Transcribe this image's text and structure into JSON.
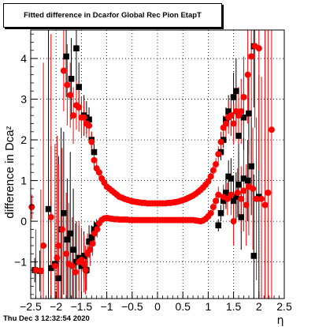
{
  "title": "Fitted difference in Dca",
  "title_subscript": "z",
  "title_suffix": " for Global Rec Pion EtapT",
  "footer_timestamp": "Thu Dec  3 12:32:54 2020",
  "chart_data": {
    "type": "scatter",
    "xlabel": "η",
    "ylabel": "difference in Dca",
    "ylabel_subscript": "z",
    "xlim": [
      -2.5,
      2.5
    ],
    "ylim": [
      -1.9,
      4.7
    ],
    "x_ticks": [
      "−2.5",
      "−2",
      "−1.5",
      "−1",
      "−0.5",
      "0",
      "0.5",
      "1",
      "1.5",
      "2",
      "2.5"
    ],
    "y_ticks": [
      "−1",
      "0",
      "1",
      "2",
      "3",
      "4"
    ],
    "grid": true,
    "colors": {
      "series_square": "#000000",
      "series_circle": "#ff0000",
      "series_circle_upper": "#ff0000",
      "error_bar_black": "#000000",
      "error_bar_red": "#ff0000"
    },
    "series": [
      {
        "marker": "square",
        "color": "#000000",
        "points": [
          [
            -2.42,
            -1.2,
            0.3
          ],
          [
            -2.32,
            -1.22,
            0.5
          ],
          [
            -2.15,
            0.3,
            4.5
          ],
          [
            -2.1,
            -1.15,
            3.0
          ],
          [
            -2.02,
            -1.05,
            1.0
          ],
          [
            -1.95,
            -1.4,
            3.0
          ],
          [
            -1.9,
            -0.2,
            2.5
          ],
          [
            -1.85,
            0.2,
            2.0
          ],
          [
            -1.78,
            -0.45,
            1.5
          ],
          [
            -1.72,
            -0.3,
            2.0
          ],
          [
            -1.66,
            -0.7,
            1.5
          ],
          [
            -1.6,
            -1.0,
            1.0
          ],
          [
            -1.55,
            -0.9,
            0.8
          ],
          [
            -1.5,
            -1.1,
            0.9
          ],
          [
            -1.45,
            -0.85,
            0.6
          ],
          [
            -1.4,
            -1.2,
            0.5
          ],
          [
            -1.35,
            -0.5,
            0.4
          ],
          [
            -1.3,
            -0.4,
            0.3
          ],
          [
            -1.25,
            -0.2,
            0.2
          ],
          [
            -1.2,
            -0.1,
            0.15
          ],
          [
            -1.8,
            4.05,
            1.0
          ],
          [
            -1.7,
            3.5,
            1.0
          ],
          [
            -1.6,
            4.25,
            0.8
          ],
          [
            -1.55,
            3.3,
            0.6
          ],
          [
            -1.45,
            2.6,
            0.5
          ],
          [
            -1.4,
            2.55,
            0.4
          ],
          [
            -1.35,
            2.5,
            0.3
          ],
          [
            -1.3,
            2.0,
            0.2
          ],
          [
            -1.25,
            1.7,
            0.2
          ],
          [
            1.25,
            1.7,
            0.2
          ],
          [
            1.3,
            2.0,
            0.2
          ],
          [
            1.35,
            2.5,
            0.3
          ],
          [
            1.4,
            2.7,
            0.4
          ],
          [
            1.45,
            2.6,
            0.5
          ],
          [
            1.5,
            3.05,
            0.6
          ],
          [
            1.55,
            3.2,
            0.8
          ],
          [
            1.6,
            2.1,
            0.8
          ],
          [
            1.7,
            2.55,
            1.0
          ],
          [
            1.8,
            2.65,
            1.0
          ],
          [
            1.9,
            4.3,
            1.5
          ],
          [
            1.2,
            -0.1,
            0.15
          ],
          [
            1.25,
            0.2,
            0.2
          ],
          [
            1.3,
            0.5,
            0.3
          ],
          [
            1.35,
            0.7,
            0.4
          ],
          [
            1.4,
            1.1,
            0.4
          ],
          [
            1.45,
            1.05,
            0.5
          ],
          [
            1.5,
            0.5,
            0.6
          ],
          [
            1.55,
            0.6,
            0.6
          ],
          [
            1.6,
            0.9,
            0.8
          ],
          [
            1.65,
            0.1,
            0.8
          ],
          [
            1.7,
            1.05,
            1.0
          ],
          [
            1.78,
            1.0,
            1.0
          ],
          [
            1.85,
            1.35,
            1.2
          ],
          [
            1.9,
            -0.85,
            2.0
          ],
          [
            2.0,
            0.6,
            3.0
          ]
        ]
      },
      {
        "marker": "circle",
        "color": "#ff0000",
        "points": [
          [
            -2.48,
            0.35,
            0.3
          ],
          [
            -2.4,
            -1.2,
            1.0
          ],
          [
            -2.3,
            -1.22,
            2.0
          ],
          [
            -2.25,
            -0.6,
            4.5
          ],
          [
            -2.1,
            0.1,
            4.5
          ],
          [
            -2.02,
            -1.1,
            3.0
          ],
          [
            -1.98,
            -0.9,
            3.0
          ],
          [
            -1.95,
            -0.6,
            2.0
          ],
          [
            -1.88,
            -0.2,
            2.0
          ],
          [
            -1.8,
            -0.8,
            1.5
          ],
          [
            -1.75,
            -1.05,
            1.5
          ],
          [
            -1.68,
            -1.1,
            1.2
          ],
          [
            -1.62,
            -1.25,
            1.2
          ],
          [
            -1.55,
            -1.0,
            1.0
          ],
          [
            -1.5,
            -0.95,
            0.8
          ],
          [
            -1.45,
            -1.05,
            0.7
          ],
          [
            -1.42,
            -1.2,
            0.6
          ],
          [
            -1.38,
            -0.8,
            0.5
          ],
          [
            -1.33,
            -0.7,
            0.4
          ],
          [
            -1.28,
            -0.55,
            0.3
          ],
          [
            -1.24,
            -0.3,
            0.25
          ],
          [
            -1.19,
            -0.2,
            0.2
          ],
          [
            -1.15,
            -0.05,
            0.1
          ],
          [
            -1.1,
            0.03,
            0.08
          ],
          [
            -1.05,
            0.07,
            0.06
          ],
          [
            -1.0,
            0.08,
            0.05
          ],
          [
            -0.95,
            0.07,
            0.05
          ],
          [
            -0.9,
            0.06,
            0.05
          ],
          [
            -0.85,
            0.05,
            0.05
          ],
          [
            -0.8,
            0.05,
            0.05
          ],
          [
            -0.75,
            0.04,
            0.05
          ],
          [
            -0.7,
            0.04,
            0.05
          ],
          [
            -0.65,
            0.04,
            0.05
          ],
          [
            -0.6,
            0.04,
            0.05
          ],
          [
            -0.55,
            0.03,
            0.05
          ],
          [
            -0.5,
            0.03,
            0.05
          ],
          [
            -0.45,
            0.03,
            0.05
          ],
          [
            -0.4,
            0.03,
            0.05
          ],
          [
            -0.35,
            0.03,
            0.05
          ],
          [
            -0.3,
            0.03,
            0.05
          ],
          [
            -0.25,
            0.03,
            0.05
          ],
          [
            -0.2,
            0.03,
            0.05
          ],
          [
            -0.15,
            0.03,
            0.05
          ],
          [
            -0.1,
            0.03,
            0.05
          ],
          [
            -0.05,
            0.03,
            0.05
          ],
          [
            0.0,
            0.03,
            0.05
          ],
          [
            0.05,
            0.03,
            0.05
          ],
          [
            0.1,
            0.03,
            0.05
          ],
          [
            0.15,
            0.03,
            0.05
          ],
          [
            0.2,
            0.03,
            0.05
          ],
          [
            0.25,
            0.03,
            0.05
          ],
          [
            0.3,
            0.03,
            0.05
          ],
          [
            0.35,
            0.03,
            0.05
          ],
          [
            0.4,
            0.03,
            0.05
          ],
          [
            0.45,
            0.03,
            0.05
          ],
          [
            0.5,
            0.03,
            0.05
          ],
          [
            0.55,
            0.03,
            0.05
          ],
          [
            0.6,
            0.03,
            0.05
          ],
          [
            0.65,
            0.03,
            0.05
          ],
          [
            0.7,
            0.03,
            0.05
          ],
          [
            0.75,
            0.02,
            0.05
          ],
          [
            0.8,
            0.01,
            0.05
          ],
          [
            0.85,
            0.0,
            0.05
          ],
          [
            0.9,
            0.02,
            0.05
          ],
          [
            0.95,
            0.06,
            0.05
          ],
          [
            1.0,
            0.12,
            0.05
          ],
          [
            1.05,
            0.2,
            0.08
          ],
          [
            1.1,
            0.35,
            0.1
          ],
          [
            1.15,
            0.5,
            0.15
          ],
          [
            1.2,
            0.65,
            0.2
          ],
          [
            1.3,
            0.6,
            0.3
          ],
          [
            1.38,
            0.55,
            0.4
          ],
          [
            1.45,
            0.65,
            0.5
          ],
          [
            1.5,
            0.0,
            0.6
          ],
          [
            1.58,
            0.7,
            0.6
          ],
          [
            1.65,
            0.55,
            0.8
          ],
          [
            1.7,
            0.75,
            1.0
          ],
          [
            1.75,
            0.4,
            1.0
          ],
          [
            1.8,
            0.85,
            1.2
          ],
          [
            1.88,
            0.8,
            1.5
          ],
          [
            1.95,
            0.55,
            2.0
          ],
          [
            2.05,
            0.55,
            3.0
          ],
          [
            2.12,
            0.4,
            4.5
          ],
          [
            2.18,
            0.7,
            4.5
          ],
          [
            2.25,
            2.25,
            4.5
          ]
        ]
      },
      {
        "marker": "circle",
        "color": "#ff0000",
        "points": [
          [
            -1.85,
            3.7,
            1.0
          ],
          [
            -1.78,
            3.35,
            1.0
          ],
          [
            -1.72,
            3.1,
            0.8
          ],
          [
            -1.66,
            2.6,
            0.7
          ],
          [
            -1.6,
            2.85,
            0.6
          ],
          [
            -1.55,
            2.8,
            0.6
          ],
          [
            -1.5,
            2.55,
            0.5
          ],
          [
            -1.45,
            2.55,
            0.4
          ],
          [
            -1.4,
            2.4,
            0.35
          ],
          [
            -1.35,
            2.35,
            0.3
          ],
          [
            -1.3,
            1.95,
            0.25
          ],
          [
            -1.25,
            1.5,
            0.2
          ],
          [
            -1.2,
            1.3,
            0.15
          ],
          [
            -1.15,
            1.2,
            0.12
          ],
          [
            -1.1,
            1.05,
            0.1
          ],
          [
            -1.05,
            0.95,
            0.08
          ],
          [
            -1.0,
            0.85,
            0.06
          ],
          [
            -0.95,
            0.8,
            0.06
          ],
          [
            -0.9,
            0.75,
            0.05
          ],
          [
            -0.85,
            0.7,
            0.05
          ],
          [
            -0.8,
            0.65,
            0.05
          ],
          [
            -0.75,
            0.6,
            0.05
          ],
          [
            -0.7,
            0.58,
            0.05
          ],
          [
            -0.65,
            0.55,
            0.05
          ],
          [
            -0.6,
            0.53,
            0.05
          ],
          [
            -0.55,
            0.51,
            0.05
          ],
          [
            -0.5,
            0.49,
            0.05
          ],
          [
            -0.45,
            0.48,
            0.05
          ],
          [
            -0.4,
            0.47,
            0.05
          ],
          [
            -0.35,
            0.46,
            0.05
          ],
          [
            -0.3,
            0.45,
            0.05
          ],
          [
            -0.25,
            0.45,
            0.05
          ],
          [
            -0.2,
            0.44,
            0.05
          ],
          [
            -0.15,
            0.44,
            0.05
          ],
          [
            -0.1,
            0.44,
            0.05
          ],
          [
            -0.05,
            0.44,
            0.05
          ],
          [
            0.0,
            0.44,
            0.05
          ],
          [
            0.05,
            0.44,
            0.05
          ],
          [
            0.1,
            0.44,
            0.05
          ],
          [
            0.15,
            0.44,
            0.05
          ],
          [
            0.2,
            0.45,
            0.05
          ],
          [
            0.25,
            0.45,
            0.05
          ],
          [
            0.3,
            0.46,
            0.05
          ],
          [
            0.35,
            0.47,
            0.05
          ],
          [
            0.4,
            0.48,
            0.05
          ],
          [
            0.45,
            0.5,
            0.05
          ],
          [
            0.5,
            0.52,
            0.05
          ],
          [
            0.55,
            0.54,
            0.05
          ],
          [
            0.6,
            0.57,
            0.05
          ],
          [
            0.65,
            0.6,
            0.05
          ],
          [
            0.7,
            0.63,
            0.05
          ],
          [
            0.75,
            0.67,
            0.05
          ],
          [
            0.8,
            0.72,
            0.05
          ],
          [
            0.85,
            0.77,
            0.05
          ],
          [
            0.9,
            0.83,
            0.06
          ],
          [
            0.95,
            0.9,
            0.06
          ],
          [
            1.0,
            0.98,
            0.08
          ],
          [
            1.05,
            1.1,
            0.1
          ],
          [
            1.1,
            1.25,
            0.12
          ],
          [
            1.15,
            1.4,
            0.15
          ],
          [
            1.2,
            1.65,
            0.2
          ],
          [
            1.25,
            1.95,
            0.25
          ],
          [
            1.3,
            2.3,
            0.3
          ],
          [
            1.35,
            2.4,
            0.35
          ],
          [
            1.4,
            2.55,
            0.4
          ],
          [
            1.45,
            2.6,
            0.5
          ],
          [
            1.5,
            2.4,
            0.5
          ],
          [
            1.55,
            2.7,
            0.6
          ],
          [
            1.6,
            2.6,
            0.7
          ],
          [
            1.65,
            2.7,
            0.8
          ],
          [
            1.7,
            3.05,
            1.0
          ],
          [
            1.78,
            3.6,
            1.2
          ],
          [
            1.85,
            4.05,
            1.5
          ],
          [
            1.92,
            4.3,
            2.0
          ],
          [
            2.0,
            4.25,
            3.0
          ]
        ]
      }
    ]
  }
}
